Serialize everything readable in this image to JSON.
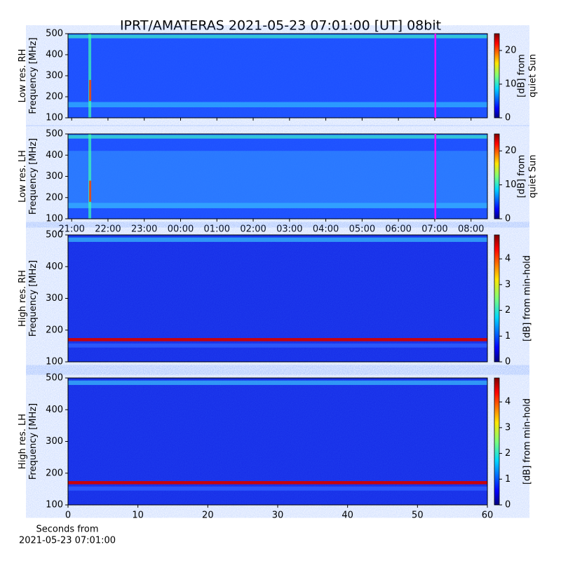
{
  "chart_data": [
    {
      "type": "heatmap",
      "title": "IPRT/AMATERAS 2021-05-23 07:01:00 [UT]   08bit",
      "ylabel": [
        "Low res. RH",
        "Frequency [MHz]"
      ],
      "ylim": [
        100,
        500
      ],
      "yticks": [
        100,
        200,
        300,
        400,
        500
      ],
      "xlim": [
        20.9,
        32.45
      ],
      "cursor": 31.017,
      "cursor_color": "#ff00ff",
      "colorbar": {
        "label": [
          "[dB] from",
          "quiet Sun"
        ],
        "lim": [
          0,
          25
        ],
        "ticks": [
          0,
          10,
          20
        ]
      }
    },
    {
      "type": "heatmap",
      "ylabel": [
        "Low res. LH",
        "Frequency [MHz]"
      ],
      "ylim": [
        100,
        500
      ],
      "yticks": [
        100,
        200,
        300,
        400,
        500
      ],
      "xlim": [
        20.9,
        32.45
      ],
      "xticks": [
        {
          "value": 21,
          "label": "21:00"
        },
        {
          "value": 22,
          "label": "22:00"
        },
        {
          "value": 23,
          "label": "23:00"
        },
        {
          "value": 24,
          "label": "00:00"
        },
        {
          "value": 25,
          "label": "01:00"
        },
        {
          "value": 26,
          "label": "02:00"
        },
        {
          "value": 27,
          "label": "03:00"
        },
        {
          "value": 28,
          "label": "04:00"
        },
        {
          "value": 29,
          "label": "05:00"
        },
        {
          "value": 30,
          "label": "06:00"
        },
        {
          "value": 31,
          "label": "07:00"
        },
        {
          "value": 32,
          "label": "08:00"
        }
      ],
      "cursor": 31.017,
      "cursor_color": "#ff00ff",
      "colorbar": {
        "label": [
          "[dB] from",
          "quiet Sun"
        ],
        "lim": [
          0,
          25
        ],
        "ticks": [
          0,
          10,
          20
        ]
      }
    },
    {
      "type": "heatmap",
      "ylabel": [
        "High res. RH",
        "Frequency [MHz]"
      ],
      "ylim": [
        100,
        500
      ],
      "yticks": [
        100,
        200,
        300,
        400,
        500
      ],
      "xlim": [
        0,
        60
      ],
      "colorbar": {
        "label": [
          "[dB] from min-hold"
        ],
        "lim": [
          0,
          4.93
        ],
        "ticks": [
          0,
          1,
          2,
          3,
          4
        ]
      }
    },
    {
      "type": "heatmap",
      "ylabel": [
        "High res. LH",
        "Frequency [MHz]"
      ],
      "ylim": [
        100,
        500
      ],
      "yticks": [
        100,
        200,
        300,
        400,
        500
      ],
      "xlim": [
        0,
        60
      ],
      "xticks": [
        0,
        10,
        20,
        30,
        40,
        50,
        60
      ],
      "xlabel": [
        "Seconds from",
        "2021-05-23 07:01:00"
      ],
      "colorbar": {
        "label": [
          "[dB] from min-hold"
        ],
        "lim": [
          0,
          4.93
        ],
        "ticks": [
          0,
          1,
          2,
          3,
          4
        ]
      }
    }
  ]
}
